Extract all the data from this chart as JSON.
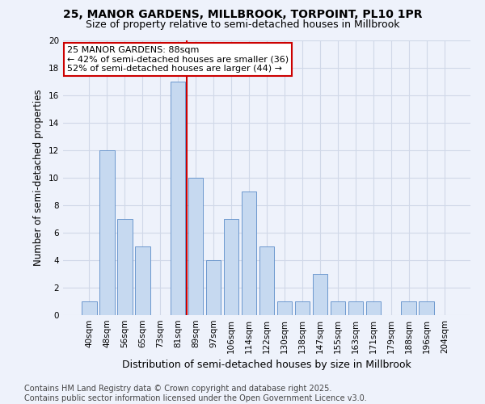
{
  "title1": "25, MANOR GARDENS, MILLBROOK, TORPOINT, PL10 1PR",
  "title2": "Size of property relative to semi-detached houses in Millbrook",
  "xlabel": "Distribution of semi-detached houses by size in Millbrook",
  "ylabel": "Number of semi-detached properties",
  "footnote": "Contains HM Land Registry data © Crown copyright and database right 2025.\nContains public sector information licensed under the Open Government Licence v3.0.",
  "categories": [
    "40sqm",
    "48sqm",
    "56sqm",
    "65sqm",
    "73sqm",
    "81sqm",
    "89sqm",
    "97sqm",
    "106sqm",
    "114sqm",
    "122sqm",
    "130sqm",
    "138sqm",
    "147sqm",
    "155sqm",
    "163sqm",
    "171sqm",
    "179sqm",
    "188sqm",
    "196sqm",
    "204sqm"
  ],
  "values": [
    1,
    12,
    7,
    5,
    0,
    17,
    10,
    4,
    7,
    9,
    5,
    1,
    1,
    3,
    1,
    1,
    1,
    0,
    1,
    1,
    0
  ],
  "bar_color": "#c6d9f0",
  "bar_edgecolor": "#5b8cc8",
  "property_line_label": "25 MANOR GARDENS: 88sqm",
  "annotation_line1": "← 42% of semi-detached houses are smaller (36)",
  "annotation_line2": "52% of semi-detached houses are larger (44) →",
  "annotation_box_color": "#ffffff",
  "annotation_box_edgecolor": "#cc0000",
  "vline_color": "#cc0000",
  "vline_x_index": 5.5,
  "ylim": [
    0,
    20
  ],
  "yticks": [
    0,
    2,
    4,
    6,
    8,
    10,
    12,
    14,
    16,
    18,
    20
  ],
  "grid_color": "#d0d8e8",
  "background_color": "#eef2fb",
  "title1_fontsize": 10,
  "title2_fontsize": 9,
  "xlabel_fontsize": 9,
  "ylabel_fontsize": 8.5,
  "tick_fontsize": 7.5,
  "footnote_fontsize": 7,
  "annotation_fontsize": 8
}
